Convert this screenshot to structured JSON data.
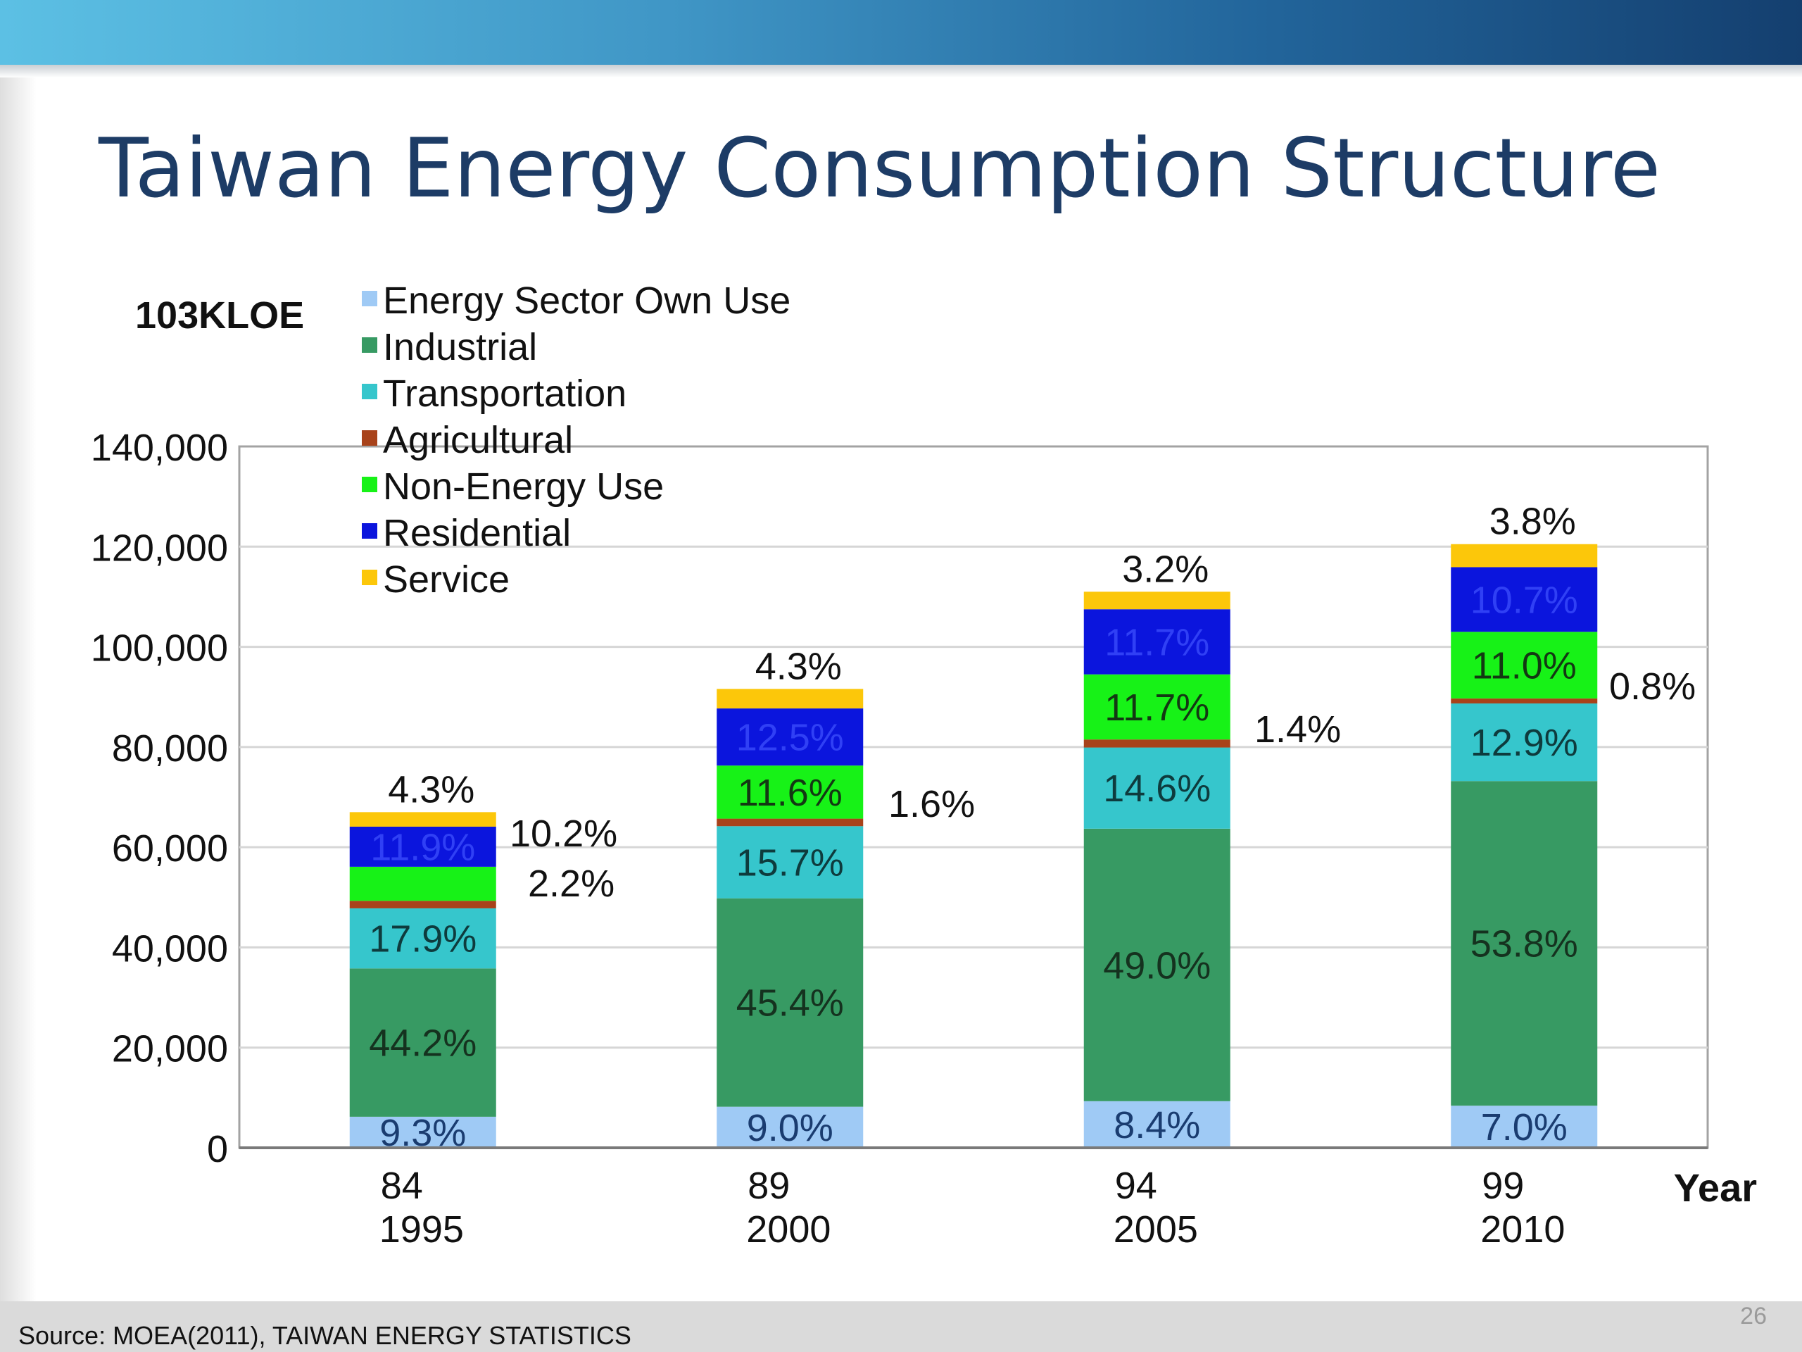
{
  "slide": {
    "title": "Taiwan Energy Consumption Structure",
    "source": "Source: MOEA(2011), TAIWAN ENERGY STATISTICS",
    "page_number": "26"
  },
  "colors": {
    "band_light": "#5cc0e4",
    "band_dark": "#143f6f",
    "title": "#1d3c66"
  },
  "chart_data": {
    "type": "bar",
    "stacked": true,
    "unit_label": "103KLOE",
    "xlabel": "Year",
    "ylim": [
      0,
      140000
    ],
    "yticks": [
      "0",
      "20,000",
      "40,000",
      "60,000",
      "80,000",
      "100,000",
      "120,000",
      "140,000"
    ],
    "ytick_values": [
      0,
      20000,
      40000,
      60000,
      80000,
      100000,
      120000,
      140000
    ],
    "grid": true,
    "categories": [
      "84",
      "89",
      "94",
      "99"
    ],
    "category_sublabels": [
      "1995",
      "2000",
      "2005",
      "2010"
    ],
    "totals": [
      67000,
      91500,
      111000,
      120500
    ],
    "legend_position": "top-left",
    "series": [
      {
        "name": "Energy Sector Own Use",
        "color": "#9fcaf5",
        "values": [
          6200,
          8200,
          9300,
          8400
        ],
        "labels": [
          "9.3%",
          "9.0%",
          "8.4%",
          "7.0%"
        ]
      },
      {
        "name": "Industrial",
        "color": "#379a63",
        "values": [
          29600,
          41600,
          54400,
          64800
        ],
        "labels": [
          "44.2%",
          "45.4%",
          "49.0%",
          "53.8%"
        ]
      },
      {
        "name": "Transportation",
        "color": "#36c6cc",
        "values": [
          12000,
          14400,
          16200,
          15500
        ],
        "labels": [
          "17.9%",
          "15.7%",
          "14.6%",
          "12.9%"
        ]
      },
      {
        "name": "Agricultural",
        "color": "#a8421a",
        "values": [
          1500,
          1500,
          1600,
          1000
        ],
        "labels": [
          "2.2%",
          "1.6%",
          "1.4%",
          "0.8%"
        ]
      },
      {
        "name": "Non-Energy Use",
        "color": "#17f217",
        "values": [
          6800,
          10600,
          13000,
          13300
        ],
        "labels": [
          "10.2%",
          "11.6%",
          "11.7%",
          "11.0%"
        ]
      },
      {
        "name": "Residential",
        "color": "#0b15dd",
        "values": [
          8000,
          11400,
          13000,
          12900
        ],
        "labels": [
          "11.9%",
          "12.5%",
          "11.7%",
          "10.7%"
        ]
      },
      {
        "name": "Service",
        "color": "#fcc70a",
        "values": [
          2900,
          3900,
          3500,
          4600
        ],
        "labels": [
          "4.3%",
          "4.3%",
          "3.2%",
          "3.8%"
        ]
      }
    ]
  }
}
